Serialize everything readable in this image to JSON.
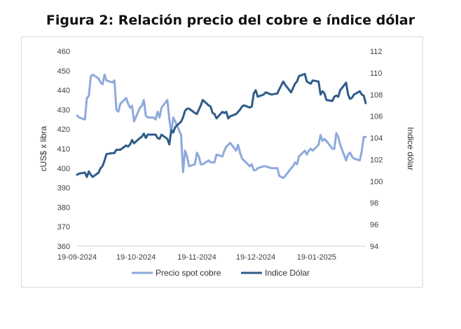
{
  "title": "Figura 2: Relación precio del cobre e índice dólar",
  "chart_data": {
    "type": "line",
    "ylabel_left": "cUS$ x libra",
    "ylabel_right": "Indice dólar",
    "y_left_lim": [
      360,
      460
    ],
    "y_right_lim": [
      94,
      112
    ],
    "y_left_ticks": [
      "360",
      "370",
      "380",
      "390",
      "400",
      "410",
      "420",
      "430",
      "440",
      "450",
      "460"
    ],
    "y_right_ticks": [
      "94",
      "96",
      "98",
      "100",
      "102",
      "104",
      "106",
      "108",
      "110",
      "112"
    ],
    "x_start": "2024-09-19",
    "x_end": "2025-02-13",
    "x_ticks": [
      "19-09-2024",
      "19-10-2024",
      "19-11-2024",
      "19-12-2024",
      "19-01-2025"
    ],
    "grid": false,
    "legend_position": "bottom",
    "series": [
      {
        "name": "Precio spot cobre",
        "axis": "left",
        "color": "#8EA9DB",
        "points": [
          [
            "2024-09-19",
            427
          ],
          [
            "2024-09-20",
            426
          ],
          [
            "2024-09-23",
            425
          ],
          [
            "2024-09-24",
            436
          ],
          [
            "2024-09-25",
            437
          ],
          [
            "2024-09-26",
            447
          ],
          [
            "2024-09-27",
            448
          ],
          [
            "2024-09-30",
            446
          ],
          [
            "2024-10-01",
            444
          ],
          [
            "2024-10-02",
            443
          ],
          [
            "2024-10-03",
            448
          ],
          [
            "2024-10-04",
            445
          ],
          [
            "2024-10-07",
            444
          ],
          [
            "2024-10-08",
            445
          ],
          [
            "2024-10-09",
            430
          ],
          [
            "2024-10-10",
            429
          ],
          [
            "2024-10-11",
            433
          ],
          [
            "2024-10-14",
            436
          ],
          [
            "2024-10-15",
            433
          ],
          [
            "2024-10-16",
            431
          ],
          [
            "2024-10-17",
            432
          ],
          [
            "2024-10-18",
            424
          ],
          [
            "2024-10-21",
            431
          ],
          [
            "2024-10-22",
            432
          ],
          [
            "2024-10-23",
            435
          ],
          [
            "2024-10-24",
            427
          ],
          [
            "2024-10-25",
            426
          ],
          [
            "2024-10-28",
            426
          ],
          [
            "2024-10-29",
            425
          ],
          [
            "2024-10-30",
            429
          ],
          [
            "2024-10-31",
            426
          ],
          [
            "2024-11-01",
            431
          ],
          [
            "2024-11-04",
            435
          ],
          [
            "2024-11-05",
            425
          ],
          [
            "2024-11-06",
            418
          ],
          [
            "2024-11-07",
            426
          ],
          [
            "2024-11-08",
            424
          ],
          [
            "2024-11-11",
            417
          ],
          [
            "2024-11-12",
            398
          ],
          [
            "2024-11-13",
            409
          ],
          [
            "2024-11-14",
            406
          ],
          [
            "2024-11-15",
            401
          ],
          [
            "2024-11-18",
            402
          ],
          [
            "2024-11-19",
            408
          ],
          [
            "2024-11-20",
            406
          ],
          [
            "2024-11-21",
            402
          ],
          [
            "2024-11-22",
            402
          ],
          [
            "2024-11-25",
            404
          ],
          [
            "2024-11-26",
            403
          ],
          [
            "2024-11-27",
            403
          ],
          [
            "2024-11-28",
            403
          ],
          [
            "2024-11-29",
            407
          ],
          [
            "2024-12-02",
            406
          ],
          [
            "2024-12-03",
            409
          ],
          [
            "2024-12-04",
            411
          ],
          [
            "2024-12-05",
            412
          ],
          [
            "2024-12-06",
            413
          ],
          [
            "2024-12-09",
            409
          ],
          [
            "2024-12-10",
            412
          ],
          [
            "2024-12-11",
            408
          ],
          [
            "2024-12-12",
            405
          ],
          [
            "2024-12-13",
            404
          ],
          [
            "2024-12-16",
            401
          ],
          [
            "2024-12-17",
            402
          ],
          [
            "2024-12-18",
            399
          ],
          [
            "2024-12-19",
            399
          ],
          [
            "2024-12-20",
            400
          ],
          [
            "2024-12-23",
            401
          ],
          [
            "2024-12-24",
            401
          ],
          [
            "2024-12-27",
            400
          ],
          [
            "2024-12-30",
            400
          ],
          [
            "2024-12-31",
            396
          ],
          [
            "2025-01-02",
            395
          ],
          [
            "2025-01-03",
            396
          ],
          [
            "2025-01-06",
            400
          ],
          [
            "2025-01-07",
            401
          ],
          [
            "2025-01-08",
            403
          ],
          [
            "2025-01-09",
            402
          ],
          [
            "2025-01-10",
            406
          ],
          [
            "2025-01-13",
            409
          ],
          [
            "2025-01-14",
            407
          ],
          [
            "2025-01-15",
            409
          ],
          [
            "2025-01-16",
            410
          ],
          [
            "2025-01-17",
            409
          ],
          [
            "2025-01-20",
            412
          ],
          [
            "2025-01-21",
            417
          ],
          [
            "2025-01-22",
            414
          ],
          [
            "2025-01-23",
            415
          ],
          [
            "2025-01-24",
            414
          ],
          [
            "2025-01-27",
            410
          ],
          [
            "2025-01-28",
            410
          ],
          [
            "2025-01-29",
            418
          ],
          [
            "2025-01-30",
            416
          ],
          [
            "2025-01-31",
            412
          ],
          [
            "2025-02-03",
            404
          ],
          [
            "2025-02-04",
            407
          ],
          [
            "2025-02-05",
            408
          ],
          [
            "2025-02-06",
            406
          ],
          [
            "2025-02-07",
            405
          ],
          [
            "2025-02-10",
            404
          ],
          [
            "2025-02-11",
            409
          ],
          [
            "2025-02-12",
            416
          ],
          [
            "2025-02-13",
            416
          ]
        ]
      },
      {
        "name": "Indice Dólar",
        "axis": "right",
        "color": "#2F5C8A",
        "points": [
          [
            "2024-09-19",
            100.6
          ],
          [
            "2024-09-20",
            100.7
          ],
          [
            "2024-09-23",
            100.8
          ],
          [
            "2024-09-24",
            100.4
          ],
          [
            "2024-09-25",
            100.9
          ],
          [
            "2024-09-26",
            100.6
          ],
          [
            "2024-09-27",
            100.4
          ],
          [
            "2024-09-30",
            100.8
          ],
          [
            "2024-10-01",
            101.2
          ],
          [
            "2024-10-02",
            101.4
          ],
          [
            "2024-10-03",
            101.9
          ],
          [
            "2024-10-04",
            102.5
          ],
          [
            "2024-10-07",
            102.6
          ],
          [
            "2024-10-08",
            102.6
          ],
          [
            "2024-10-09",
            102.9
          ],
          [
            "2024-10-10",
            102.9
          ],
          [
            "2024-10-11",
            102.9
          ],
          [
            "2024-10-14",
            103.3
          ],
          [
            "2024-10-15",
            103.2
          ],
          [
            "2024-10-16",
            103.4
          ],
          [
            "2024-10-17",
            103.8
          ],
          [
            "2024-10-18",
            103.5
          ],
          [
            "2024-10-21",
            104.0
          ],
          [
            "2024-10-22",
            104.1
          ],
          [
            "2024-10-23",
            104.4
          ],
          [
            "2024-10-24",
            104.0
          ],
          [
            "2024-10-25",
            104.3
          ],
          [
            "2024-10-28",
            104.3
          ],
          [
            "2024-10-29",
            104.3
          ],
          [
            "2024-10-30",
            104.0
          ],
          [
            "2024-10-31",
            103.9
          ],
          [
            "2024-11-01",
            104.3
          ],
          [
            "2024-11-04",
            103.9
          ],
          [
            "2024-11-05",
            103.4
          ],
          [
            "2024-11-06",
            104.7
          ],
          [
            "2024-11-07",
            104.5
          ],
          [
            "2024-11-08",
            105.0
          ],
          [
            "2024-11-11",
            105.5
          ],
          [
            "2024-11-12",
            105.9
          ],
          [
            "2024-11-13",
            106.5
          ],
          [
            "2024-11-14",
            106.7
          ],
          [
            "2024-11-15",
            106.7
          ],
          [
            "2024-11-18",
            106.3
          ],
          [
            "2024-11-19",
            106.2
          ],
          [
            "2024-11-20",
            106.6
          ],
          [
            "2024-11-21",
            107.0
          ],
          [
            "2024-11-22",
            107.5
          ],
          [
            "2024-11-25",
            107.0
          ],
          [
            "2024-11-26",
            106.9
          ],
          [
            "2024-11-27",
            106.3
          ],
          [
            "2024-11-28",
            106.2
          ],
          [
            "2024-11-29",
            105.8
          ],
          [
            "2024-12-02",
            106.4
          ],
          [
            "2024-12-03",
            106.3
          ],
          [
            "2024-12-04",
            106.4
          ],
          [
            "2024-12-05",
            105.8
          ],
          [
            "2024-12-06",
            106.0
          ],
          [
            "2024-12-09",
            106.2
          ],
          [
            "2024-12-10",
            106.4
          ],
          [
            "2024-12-11",
            106.6
          ],
          [
            "2024-12-12",
            106.9
          ],
          [
            "2024-12-13",
            107.0
          ],
          [
            "2024-12-16",
            106.8
          ],
          [
            "2024-12-17",
            106.9
          ],
          [
            "2024-12-18",
            108.1
          ],
          [
            "2024-12-19",
            108.4
          ],
          [
            "2024-12-20",
            107.8
          ],
          [
            "2024-12-23",
            108.0
          ],
          [
            "2024-12-24",
            108.2
          ],
          [
            "2024-12-27",
            108.0
          ],
          [
            "2024-12-30",
            108.1
          ],
          [
            "2024-12-31",
            108.5
          ],
          [
            "2025-01-02",
            109.2
          ],
          [
            "2025-01-03",
            108.9
          ],
          [
            "2025-01-06",
            108.2
          ],
          [
            "2025-01-07",
            108.6
          ],
          [
            "2025-01-08",
            109.0
          ],
          [
            "2025-01-09",
            109.2
          ],
          [
            "2025-01-10",
            109.7
          ],
          [
            "2025-01-13",
            109.9
          ],
          [
            "2025-01-14",
            109.2
          ],
          [
            "2025-01-15",
            109.1
          ],
          [
            "2025-01-16",
            109.0
          ],
          [
            "2025-01-17",
            109.3
          ],
          [
            "2025-01-20",
            109.2
          ],
          [
            "2025-01-21",
            108.0
          ],
          [
            "2025-01-22",
            108.3
          ],
          [
            "2025-01-23",
            108.1
          ],
          [
            "2025-01-24",
            107.5
          ],
          [
            "2025-01-27",
            107.4
          ],
          [
            "2025-01-28",
            107.8
          ],
          [
            "2025-01-29",
            107.9
          ],
          [
            "2025-01-30",
            107.8
          ],
          [
            "2025-01-31",
            108.4
          ],
          [
            "2025-02-03",
            109.1
          ],
          [
            "2025-02-04",
            108.0
          ],
          [
            "2025-02-05",
            107.6
          ],
          [
            "2025-02-06",
            107.7
          ],
          [
            "2025-02-07",
            108.0
          ],
          [
            "2025-02-10",
            108.3
          ],
          [
            "2025-02-11",
            108.0
          ],
          [
            "2025-02-12",
            107.9
          ],
          [
            "2025-02-13",
            107.2
          ]
        ]
      }
    ]
  }
}
